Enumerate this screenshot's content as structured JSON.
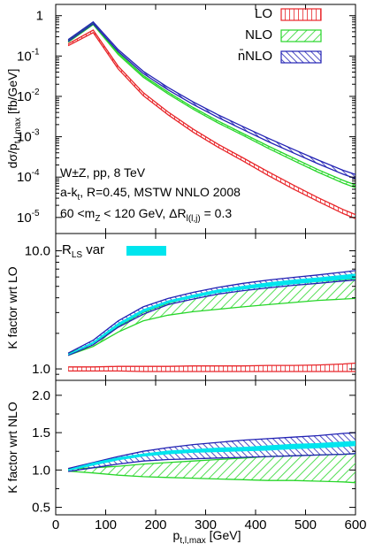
{
  "colors": {
    "LO": "#e8262a",
    "NLO": "#27d629",
    "nNLO": "#2222b4",
    "RLS": "#00e5ee"
  },
  "x_axis": {
    "ticks": [
      "0",
      "100",
      "200",
      "300",
      "400",
      "500",
      "600"
    ],
    "label_main": "p",
    "label_sub": "t,l,max",
    "label_unit": " [GeV]"
  },
  "legend": {
    "items": [
      {
        "key": "LO",
        "label": "LO",
        "hatch": "vertical"
      },
      {
        "key": "NLO",
        "label": "NLO",
        "hatch": "diagonal-down"
      },
      {
        "key": "nNLO",
        "label": "n̄NLO",
        "hatch": "diagonal-up"
      }
    ],
    "rls_main": "R",
    "rls_sub": "LS",
    "rls_rest": " var"
  },
  "annotation": {
    "line1": "W±Z, pp, 8 TeV",
    "line2a": "a-k",
    "line2sub": "t",
    "line2b": ", R=0.45, MSTW NNLO 2008",
    "line3a": "60 <m",
    "line3sub1": "Z",
    "line3b": " < 120 GeV, ΔR",
    "line3sub2": "l(l,j)",
    "line3c": " = 0.3"
  },
  "panels": {
    "top": {
      "ylabel_a": "dσ/p",
      "ylabel_sub": "t,l,max",
      "ylabel_b": " [fb/GeV]",
      "ticks": [
        "1",
        "10",
        "10",
        "10",
        "10",
        "10"
      ],
      "tick_exps": [
        "",
        "-1",
        "-2",
        "-3",
        "-4",
        "-5"
      ]
    },
    "mid": {
      "ylabel": "K factor wrt LO",
      "ticks": [
        "1.0",
        "10.0"
      ]
    },
    "bot": {
      "ylabel": "K factor wrt NLO",
      "ticks": [
        "0.5",
        "1.0",
        "1.5",
        "2.0"
      ]
    }
  },
  "chart_data": [
    {
      "type": "line",
      "panel": "top",
      "yscale": "log",
      "xlim": [
        0,
        600
      ],
      "ylim": [
        4e-06,
        1.9
      ],
      "x": [
        25,
        75,
        125,
        175,
        225,
        275,
        325,
        375,
        425,
        475,
        525,
        575,
        600
      ],
      "series": [
        {
          "name": "LO",
          "lo": [
            0.18,
            0.38,
            0.048,
            0.0105,
            0.0035,
            0.0013,
            0.00055,
            0.00025,
            0.00011,
            5.1e-05,
            2.5e-05,
            1.25e-05,
            9.4e-06
          ],
          "hi": [
            0.2,
            0.44,
            0.056,
            0.0124,
            0.0041,
            0.00155,
            0.00065,
            0.0003,
            0.000136,
            6.4e-05,
            3.1e-05,
            1.58e-05,
            1.18e-05
          ]
        },
        {
          "name": "NLO",
          "lo": [
            0.22,
            0.6,
            0.11,
            0.03,
            0.0115,
            0.0048,
            0.0022,
            0.00108,
            0.00052,
            0.00026,
            0.000133,
            7.1e-05,
            5.5e-05
          ],
          "hi": [
            0.24,
            0.65,
            0.12,
            0.033,
            0.0127,
            0.0053,
            0.00245,
            0.0012,
            0.00059,
            0.0003,
            0.000153,
            8.3e-05,
            6.4e-05
          ]
        },
        {
          "name": "n̄NLO",
          "lo": [
            0.23,
            0.63,
            0.13,
            0.037,
            0.0145,
            0.0063,
            0.003,
            0.0015,
            0.00076,
            0.0004,
            0.000215,
            0.000118,
            9.2e-05
          ],
          "hi": [
            0.255,
            0.7,
            0.145,
            0.042,
            0.0166,
            0.0073,
            0.0035,
            0.00178,
            0.00092,
            0.00049,
            0.000265,
            0.000148,
            0.000116
          ]
        }
      ]
    },
    {
      "type": "line",
      "panel": "mid",
      "yscale": "log",
      "xlim": [
        0,
        600
      ],
      "ylim": [
        0.8,
        14
      ],
      "x": [
        25,
        75,
        125,
        175,
        225,
        275,
        325,
        375,
        425,
        475,
        525,
        575,
        600
      ],
      "series": [
        {
          "name": "LO",
          "lo": [
            0.96,
            0.96,
            0.96,
            0.95,
            0.95,
            0.95,
            0.95,
            0.95,
            0.95,
            0.95,
            0.95,
            0.95,
            0.95
          ],
          "hi": [
            1.04,
            1.04,
            1.05,
            1.05,
            1.05,
            1.06,
            1.06,
            1.06,
            1.07,
            1.07,
            1.08,
            1.1,
            1.12
          ]
        },
        {
          "name": "NLO",
          "lo": [
            1.3,
            1.55,
            2.05,
            2.55,
            2.85,
            3.05,
            3.2,
            3.35,
            3.5,
            3.65,
            3.8,
            3.9,
            3.95
          ],
          "hi": [
            1.35,
            1.65,
            2.3,
            3.0,
            3.6,
            4.1,
            4.5,
            4.85,
            5.1,
            5.3,
            5.5,
            5.7,
            5.8
          ]
        },
        {
          "name": "n̄NLO",
          "lo": [
            1.3,
            1.6,
            2.25,
            2.9,
            3.5,
            3.9,
            4.3,
            4.6,
            4.85,
            5.1,
            5.3,
            5.55,
            5.65
          ],
          "hi": [
            1.36,
            1.75,
            2.55,
            3.35,
            3.95,
            4.45,
            4.9,
            5.3,
            5.65,
            5.95,
            6.25,
            6.6,
            6.8
          ]
        },
        {
          "name": "R_LS var",
          "lo": [
            1.31,
            1.63,
            2.3,
            3.0,
            3.6,
            4.0,
            4.4,
            4.7,
            4.95,
            5.2,
            5.45,
            5.7,
            5.8
          ],
          "hi": [
            1.34,
            1.7,
            2.45,
            3.2,
            3.8,
            4.25,
            4.7,
            5.05,
            5.4,
            5.7,
            5.95,
            6.25,
            6.4
          ]
        }
      ]
    },
    {
      "type": "line",
      "panel": "bot",
      "yscale": "linear",
      "xlim": [
        0,
        600
      ],
      "ylim": [
        0.4,
        2.2
      ],
      "x": [
        25,
        75,
        125,
        175,
        225,
        275,
        325,
        375,
        425,
        475,
        525,
        575,
        600
      ],
      "series": [
        {
          "name": "NLO",
          "lo": [
            0.985,
            0.96,
            0.93,
            0.91,
            0.9,
            0.89,
            0.88,
            0.87,
            0.86,
            0.86,
            0.85,
            0.84,
            0.83
          ],
          "hi": [
            1.015,
            1.03,
            1.05,
            1.08,
            1.1,
            1.12,
            1.14,
            1.16,
            1.18,
            1.19,
            1.2,
            1.21,
            1.22
          ]
        },
        {
          "name": "n̄NLO",
          "lo": [
            0.98,
            1.03,
            1.08,
            1.12,
            1.14,
            1.15,
            1.16,
            1.17,
            1.18,
            1.19,
            1.2,
            1.21,
            1.22
          ],
          "hi": [
            1.02,
            1.1,
            1.18,
            1.25,
            1.3,
            1.34,
            1.37,
            1.4,
            1.42,
            1.44,
            1.46,
            1.49,
            1.5
          ]
        },
        {
          "name": "R_LS var",
          "lo": [
            0.99,
            1.06,
            1.13,
            1.18,
            1.21,
            1.23,
            1.24,
            1.25,
            1.26,
            1.28,
            1.29,
            1.31,
            1.32
          ],
          "hi": [
            1.01,
            1.1,
            1.17,
            1.22,
            1.26,
            1.28,
            1.3,
            1.31,
            1.33,
            1.35,
            1.36,
            1.38,
            1.39
          ]
        }
      ]
    }
  ]
}
